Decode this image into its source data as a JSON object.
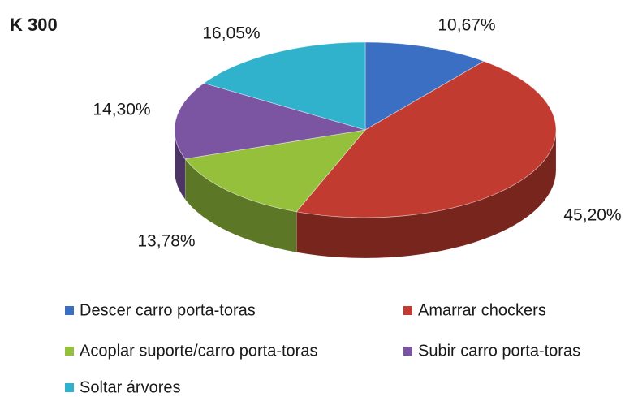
{
  "chart_data": {
    "type": "pie3d",
    "title": "K 300",
    "categories": [
      "Descer carro porta-toras",
      "Amarrar chockers",
      "Acoplar suporte/carro porta-toras",
      "Subir carro porta-toras",
      "Soltar árvores"
    ],
    "values": [
      10.67,
      45.2,
      13.78,
      14.3,
      16.05
    ],
    "value_labels": [
      "10,67%",
      "45,20%",
      "13,78%",
      "14,30%",
      "16,05%"
    ],
    "colors": [
      "#3a6fc4",
      "#c23b31",
      "#95c03c",
      "#7b55a2",
      "#30b2cd"
    ],
    "legend": "bottom"
  }
}
